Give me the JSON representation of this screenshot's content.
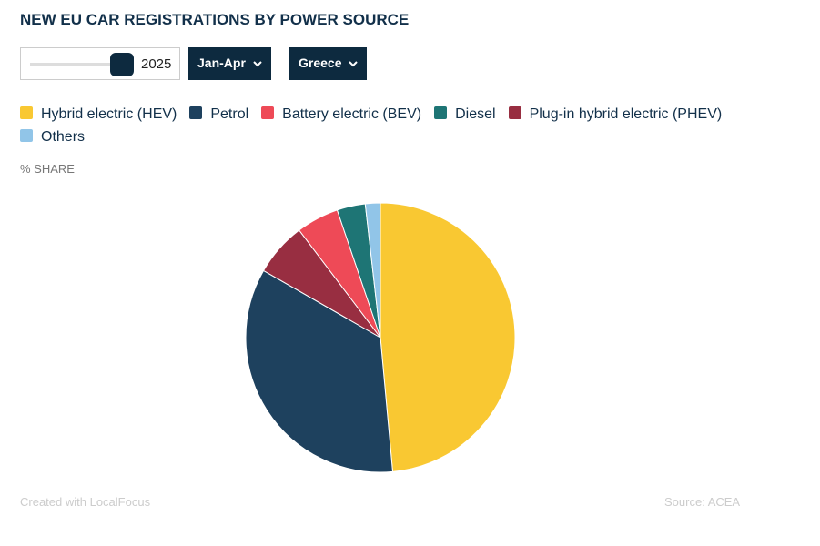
{
  "chart_data": {
    "type": "pie",
    "title": "NEW EU CAR REGISTRATIONS BY POWER SOURCE",
    "controls": {
      "year": "2025",
      "period": "Jan-Apr",
      "country": "Greece"
    },
    "unit_label": "% SHARE",
    "categories": [
      "Hybrid electric (HEV)",
      "Petrol",
      "Battery electric (BEV)",
      "Diesel",
      "Plug-in hybrid electric (PHEV)",
      "Others"
    ],
    "values": [
      48.5,
      34.7,
      5.1,
      3.4,
      6.4,
      1.8
    ],
    "colors": [
      "#f9c832",
      "#1e415e",
      "#ee4a57",
      "#1e7575",
      "#982e41",
      "#91c5e8"
    ],
    "credit": "Created with LocalFocus",
    "source": "Source:  ACEA"
  }
}
